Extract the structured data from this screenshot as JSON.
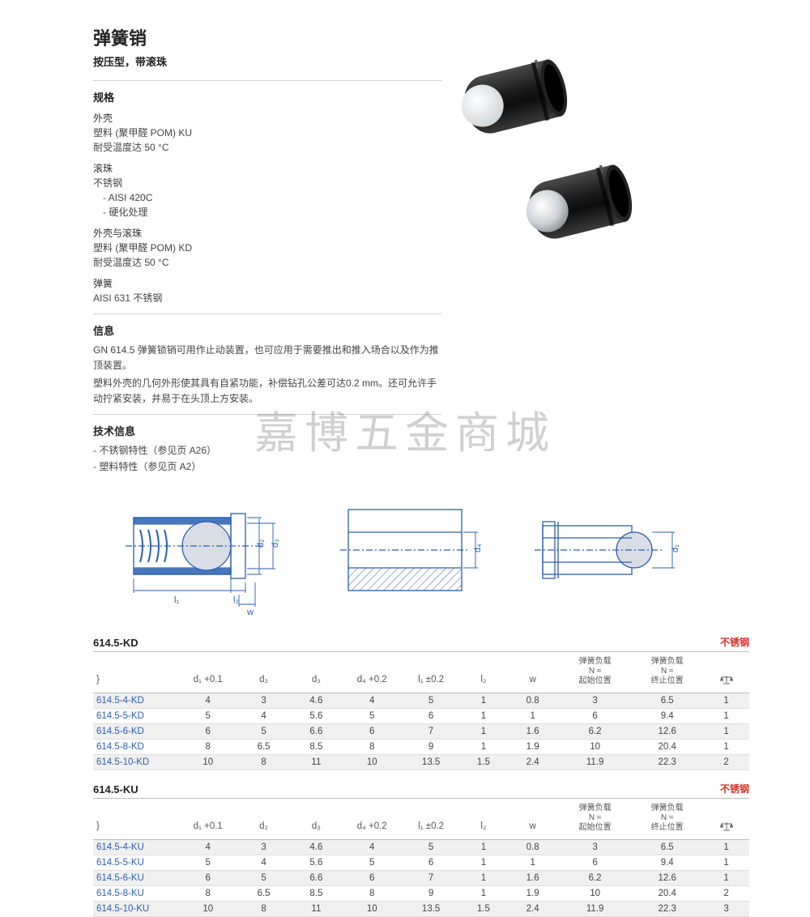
{
  "header": {
    "title": "弹簧销",
    "subtitle": "按压型，带滚珠"
  },
  "sections": {
    "spec_head": "规格",
    "shell_label": "外壳",
    "shell_line1": "塑料 (聚甲醛 POM) KU",
    "shell_line2": "耐受温度达 50 °C",
    "ball_label": "滚珠",
    "ball_line1": "不锈钢",
    "ball_li1": "- AISI 420C",
    "ball_li2": "- 硬化处理",
    "shellball_label": "外壳与滚珠",
    "shellball_line1": "塑料 (聚甲醛 POM) KD",
    "shellball_line2": "耐受温度达 50 °C",
    "spring_label": "弹簧",
    "spring_line1": "AISI 631 不锈钢",
    "info_head": "信息",
    "info_p1": "GN 614.5 弹簧锁销可用作止动装置，也可应用于需要推出和推入场合以及作为推顶装置。",
    "info_p2": "塑料外壳的几何外形使其具有自紧功能，补偿钻孔公差可达0.2 mm。还可允许手动拧紧安装，并易于在头顶上方安装。",
    "tech_head": "技术信息",
    "tech_li1": "- 不锈钢特性（参见页 A26）",
    "tech_li2": "- 塑料特性（参见页 A2）"
  },
  "diagram_labels": {
    "d1": "d₁",
    "d2": "d₂",
    "d3": "d₃",
    "d4": "d₄",
    "l1": "l₁",
    "l2": "l₂",
    "w": "w"
  },
  "watermark": "嘉博五金商城",
  "tables": {
    "columns": {
      "code": "}",
      "d1": "d₁ +0.1",
      "d2": "d₂",
      "d3": "d₃",
      "d4": "d₄ +0.2",
      "l1": "l₁ ±0.2",
      "l2": "l₂",
      "w": "w",
      "force_start_l1": "弹簧负载",
      "force_start_l2": "N ≈",
      "force_start_l3": "起始位置",
      "force_end_l1": "弹簧负载",
      "force_end_l2": "N ≈",
      "force_end_l3": "终止位置"
    },
    "tag": "不锈钢",
    "kd": {
      "title": "614.5-KD",
      "rows": [
        [
          "614.5-4-KD",
          "4",
          "3",
          "4.6",
          "4",
          "5",
          "1",
          "0.8",
          "3",
          "6.5",
          "1"
        ],
        [
          "614.5-5-KD",
          "5",
          "4",
          "5.6",
          "5",
          "6",
          "1",
          "1",
          "6",
          "9.4",
          "1"
        ],
        [
          "614.5-6-KD",
          "6",
          "5",
          "6.6",
          "6",
          "7",
          "1",
          "1.6",
          "6.2",
          "12.6",
          "1"
        ],
        [
          "614.5-8-KD",
          "8",
          "6.5",
          "8.5",
          "8",
          "9",
          "1",
          "1.9",
          "10",
          "20.4",
          "1"
        ],
        [
          "614.5-10-KD",
          "10",
          "8",
          "11",
          "10",
          "13.5",
          "1.5",
          "2.4",
          "11.9",
          "22.3",
          "2"
        ]
      ]
    },
    "ku": {
      "title": "614.5-KU",
      "rows": [
        [
          "614.5-4-KU",
          "4",
          "3",
          "4.6",
          "4",
          "5",
          "1",
          "0.8",
          "3",
          "6.5",
          "1"
        ],
        [
          "614.5-5-KU",
          "5",
          "4",
          "5.6",
          "5",
          "6",
          "1",
          "1",
          "6",
          "9.4",
          "1"
        ],
        [
          "614.5-6-KU",
          "6",
          "5",
          "6.6",
          "6",
          "7",
          "1",
          "1.6",
          "6.2",
          "12.6",
          "1"
        ],
        [
          "614.5-8-KU",
          "8",
          "6.5",
          "8.5",
          "8",
          "9",
          "1",
          "1.9",
          "10",
          "20.4",
          "2"
        ],
        [
          "614.5-10-KU",
          "10",
          "8",
          "11",
          "10",
          "13.5",
          "1.5",
          "2.4",
          "11.9",
          "22.3",
          "3"
        ]
      ]
    }
  },
  "colors": {
    "text": "#333333",
    "link": "#2a5fb0",
    "tag_red": "#d9302a",
    "row_alt": "#f0f0f0",
    "border": "#bbbbbb",
    "diagram_stroke": "#2a5fb0",
    "diagram_fill": "#d9dee6"
  }
}
